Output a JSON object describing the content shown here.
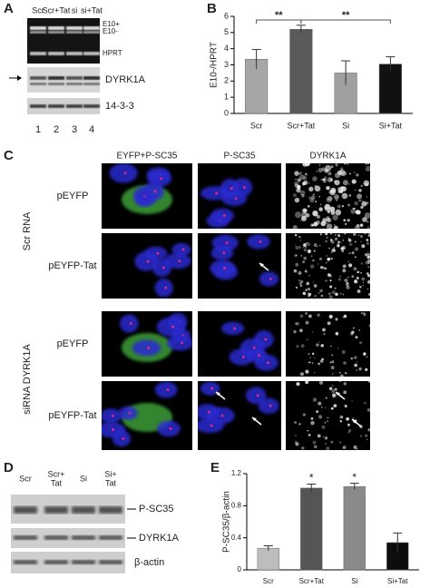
{
  "panels": [
    "A",
    "B",
    "C",
    "D",
    "E"
  ],
  "gel": {
    "lanes": [
      "Scr",
      "Scr+Tat",
      "si",
      "si+Tat"
    ],
    "lane_numbers": [
      "1",
      "2",
      "3",
      "4"
    ],
    "bands": [
      "E10+",
      "E10-",
      "HPRT",
      "DYRK1A",
      "14-3-3"
    ]
  },
  "chart_data": [
    {
      "type": "bar",
      "y_label": "E10-/HPRT",
      "categories": [
        "Scr",
        "Scr+Tat",
        "Si",
        "Si+Tat"
      ],
      "values": [
        3.35,
        5.2,
        2.5,
        3.05
      ],
      "errors": [
        0.6,
        0.25,
        0.75,
        0.45
      ],
      "colors": [
        "#a6a6a6",
        "#5a5a5a",
        "#a0a0a0",
        "#111111"
      ],
      "ylim": [
        0,
        6
      ],
      "yticks": [
        0,
        1,
        2,
        3,
        4,
        5,
        6
      ],
      "annotations": [
        "**",
        "**"
      ]
    },
    {
      "type": "bar",
      "y_label": "P-SC35/β-actin",
      "categories": [
        "Scr",
        "Scr+Tat",
        "Si",
        "Si+Tat"
      ],
      "values": [
        0.27,
        1.02,
        1.04,
        0.34
      ],
      "errors": [
        0.03,
        0.05,
        0.04,
        0.12
      ],
      "colors": [
        "#bdbdbd",
        "#555555",
        "#8a8a8a",
        "#0d0d0d"
      ],
      "ylim": [
        0,
        1.2
      ],
      "yticks": [
        0,
        0.4,
        0.8,
        1.2
      ],
      "significance": [
        null,
        "*",
        "*",
        null
      ]
    }
  ],
  "microscopy": {
    "columns": [
      "EYFP+P-SC35",
      "P-SC35",
      "DYRK1A"
    ],
    "rows": [
      "pEYFP",
      "pEYFP-Tat",
      "pEYFP",
      "pEYFP-Tat"
    ],
    "groups": [
      "Scr RNA",
      "siRNA DYRK1A"
    ]
  },
  "blot": {
    "lanes": [
      [
        "Scr"
      ],
      [
        "Scr+",
        "Tat"
      ],
      [
        "Si"
      ],
      [
        "Si+",
        "Tat"
      ]
    ],
    "bands": [
      "P-SC35",
      "DYRK1A",
      "β-actin"
    ]
  }
}
